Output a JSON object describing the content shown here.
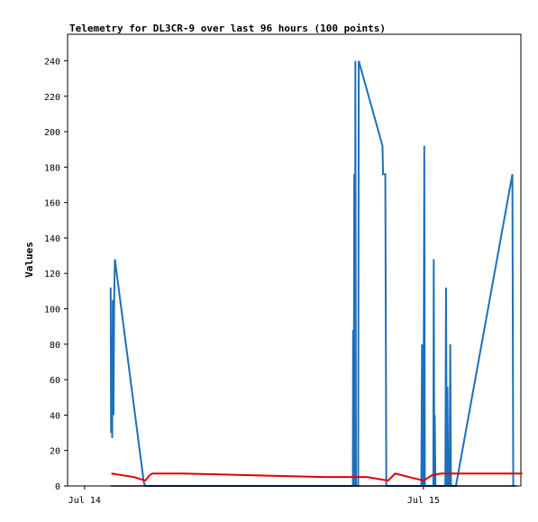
{
  "chart_data": {
    "type": "line",
    "title": "Telemetry for DL3CR-9 over last 96 hours (100 points)",
    "xlabel": "",
    "ylabel": "Values",
    "ylim": [
      0,
      255
    ],
    "y_ticks": [
      0,
      20,
      40,
      60,
      80,
      100,
      120,
      140,
      160,
      180,
      200,
      220,
      240
    ],
    "x_ticks": [
      {
        "label": "Jul 14",
        "x": 0
      },
      {
        "label": "Jul 15",
        "x": 24
      }
    ],
    "xlim": [
      -1.2,
      30.9
    ],
    "grid": false,
    "series": [
      {
        "color": "#1e6fba",
        "points": [
          [
            1.85,
            112
          ],
          [
            1.88,
            30
          ],
          [
            1.92,
            85
          ],
          [
            1.96,
            27
          ],
          [
            2.0,
            105
          ],
          [
            2.05,
            40
          ],
          [
            2.1,
            105
          ],
          [
            2.15,
            128
          ],
          [
            4.2,
            2
          ],
          [
            4.3,
            0
          ],
          [
            19.0,
            0
          ],
          [
            19.02,
            88
          ],
          [
            19.06,
            0
          ],
          [
            19.1,
            176
          ],
          [
            19.14,
            0
          ],
          [
            19.18,
            240
          ],
          [
            19.22,
            0
          ],
          [
            19.38,
            0
          ],
          [
            19.42,
            240
          ],
          [
            21.1,
            192
          ],
          [
            21.14,
            176
          ],
          [
            21.3,
            176
          ],
          [
            21.33,
            104
          ],
          [
            21.37,
            0
          ],
          [
            23.85,
            0
          ],
          [
            23.9,
            80
          ],
          [
            23.95,
            0
          ],
          [
            24.0,
            0
          ],
          [
            24.03,
            100
          ],
          [
            24.06,
            192
          ],
          [
            24.1,
            0
          ],
          [
            24.7,
            0
          ],
          [
            24.73,
            128
          ],
          [
            24.77,
            0
          ],
          [
            24.8,
            40
          ],
          [
            24.85,
            0
          ],
          [
            25.55,
            0
          ],
          [
            25.6,
            112
          ],
          [
            25.65,
            0
          ],
          [
            25.7,
            56
          ],
          [
            25.75,
            0
          ],
          [
            25.85,
            0
          ],
          [
            25.9,
            80
          ],
          [
            25.95,
            0
          ],
          [
            26.3,
            0
          ],
          [
            30.3,
            176
          ],
          [
            30.36,
            0
          ]
        ]
      },
      {
        "color": "#e00000",
        "points": [
          [
            1.9,
            7
          ],
          [
            3.5,
            5
          ],
          [
            4.3,
            3
          ],
          [
            4.6,
            6
          ],
          [
            4.8,
            7
          ],
          [
            7.0,
            7
          ],
          [
            12.0,
            6
          ],
          [
            17.0,
            5
          ],
          [
            20.0,
            5
          ],
          [
            21.5,
            3
          ],
          [
            22.0,
            7
          ],
          [
            23.0,
            5
          ],
          [
            24.0,
            3
          ],
          [
            24.6,
            6
          ],
          [
            25.2,
            7
          ],
          [
            26.0,
            7
          ],
          [
            28.0,
            7
          ],
          [
            31.0,
            7
          ]
        ]
      },
      {
        "color": "#000000",
        "points": [
          [
            1.85,
            0
          ],
          [
            30.6,
            0
          ]
        ]
      }
    ]
  }
}
